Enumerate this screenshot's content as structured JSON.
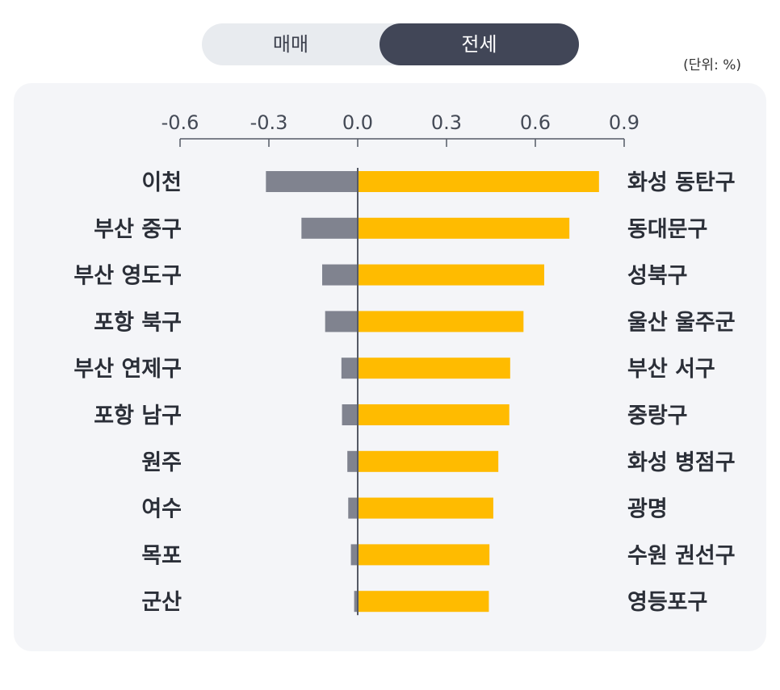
{
  "toggle": {
    "options": [
      "매매",
      "전세"
    ],
    "selected": "전세"
  },
  "unit_label": "(단위: %)",
  "colors": {
    "negative_bar": "#80838f",
    "positive_bar": "#ffbb00",
    "axis": "#555a66",
    "panel_bg": "#f4f5f8",
    "toggle_active": "#414657"
  },
  "chart_data": {
    "type": "bar",
    "orientation": "horizontal",
    "xlim": [
      -0.6,
      0.9
    ],
    "ticks": [
      "-0.6",
      "-0.3",
      "0.0",
      "0.3",
      "0.6",
      "0.9"
    ],
    "tick_values": [
      -0.6,
      -0.3,
      0.0,
      0.3,
      0.6,
      0.9
    ],
    "series": [
      {
        "categories": [
          "이천",
          "부산 중구",
          "부산 영도구",
          "포항 북구",
          "부산 연제구",
          "포항 남구",
          "원주",
          "여수",
          "목포",
          "군산"
        ],
        "values": [
          -0.31,
          -0.19,
          -0.12,
          -0.11,
          -0.055,
          -0.053,
          -0.035,
          -0.032,
          -0.023,
          -0.012
        ]
      },
      {
        "categories": [
          "화성 동탄구",
          "동대문구",
          "성북구",
          "울산 울주군",
          "부산 서구",
          "중랑구",
          "화성 병점구",
          "광명",
          "수원 권선구",
          "영등포구"
        ],
        "values": [
          0.815,
          0.715,
          0.63,
          0.56,
          0.515,
          0.512,
          0.475,
          0.458,
          0.445,
          0.443
        ]
      }
    ]
  }
}
